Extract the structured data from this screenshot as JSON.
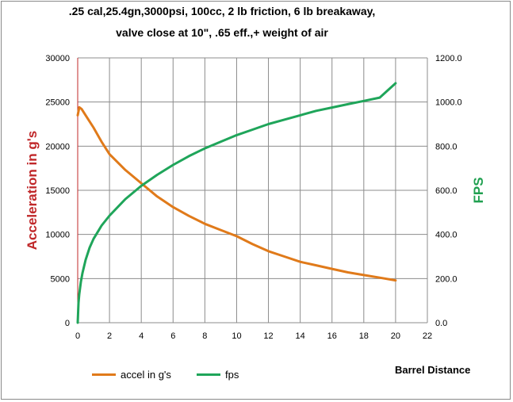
{
  "chart_data": {
    "type": "line",
    "title_lines": [
      ".25 cal,25.4gn,3000psi, 100cc, 2 lb friction, 6 lb breakaway,",
      "valve close at 10\", .65 eff.,+ weight of air"
    ],
    "xlabel": "Barrel Distance",
    "ylabel_left": "Acceleration in g's",
    "ylabel_right": "FPS",
    "xlim": [
      0,
      22
    ],
    "ylim_left": [
      0,
      30000
    ],
    "ylim_right": [
      0,
      1200
    ],
    "x_ticks": [
      "0",
      "2",
      "4",
      "6",
      "8",
      "10",
      "12",
      "14",
      "16",
      "18",
      "20",
      "22"
    ],
    "y_left_ticks": [
      "0",
      "5000",
      "10000",
      "15000",
      "20000",
      "25000",
      "30000"
    ],
    "y_right_ticks": [
      "0.0",
      "200.0",
      "400.0",
      "600.0",
      "800.0",
      "1000.0",
      "1200.0"
    ],
    "grid": true,
    "legend_position": "bottom-left",
    "series": [
      {
        "name": "accel  in  g's",
        "axis": "left",
        "color": "#e07a1a",
        "x": [
          0,
          0.1,
          0.25,
          0.5,
          1,
          1.5,
          2,
          3,
          4,
          5,
          6,
          7,
          8,
          9,
          10,
          11,
          12,
          13,
          14,
          15,
          16,
          17,
          18,
          19,
          20
        ],
        "y": [
          23500,
          24400,
          24200,
          23500,
          22100,
          20500,
          19100,
          17300,
          15800,
          14300,
          13100,
          12100,
          11200,
          10500,
          9800,
          8900,
          8100,
          7500,
          6900,
          6500,
          6100,
          5700,
          5400,
          5100,
          4800
        ]
      },
      {
        "name": "fps",
        "axis": "right",
        "color": "#1fa55a",
        "x": [
          0,
          0.05,
          0.1,
          0.2,
          0.3,
          0.5,
          0.75,
          1,
          1.5,
          2,
          3,
          4,
          5,
          6,
          7,
          8,
          9,
          10,
          11,
          12,
          13,
          14,
          15,
          16,
          17,
          18,
          19,
          20
        ],
        "y": [
          0,
          90,
          130,
          185,
          225,
          285,
          340,
          380,
          440,
          485,
          560,
          620,
          670,
          715,
          755,
          790,
          820,
          850,
          875,
          900,
          920,
          940,
          960,
          975,
          990,
          1005,
          1020,
          1085
        ]
      }
    ]
  }
}
